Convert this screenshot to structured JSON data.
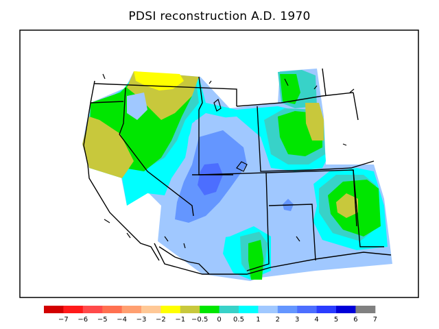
{
  "title": "PDSI reconstruction A.D. 1970",
  "legend": {
    "colors": [
      "#d20000",
      "#ff1a1a",
      "#ff4a4a",
      "#ff7050",
      "#ff9f70",
      "#ffc896",
      "#ffff00",
      "#c8c83c",
      "#00e600",
      "#38d2c8",
      "#00ffff",
      "#a0c8ff",
      "#6496ff",
      "#4c6eff",
      "#2a3cff",
      "#0000d8",
      "#808080"
    ],
    "ticks": [
      "−7",
      "−6",
      "−5",
      "−4",
      "−3",
      "−2",
      "−1",
      "−0.5",
      "0",
      "0.5",
      "1",
      "2",
      "3",
      "4",
      "5",
      "6",
      "7"
    ]
  }
}
